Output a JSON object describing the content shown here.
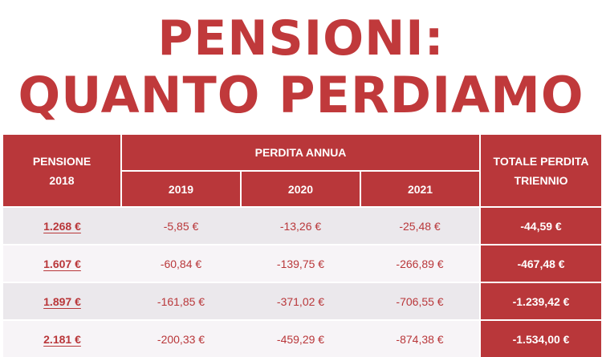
{
  "title": {
    "line1": "PENSIONI:",
    "line2": "QUANTO PERDIAMO"
  },
  "table": {
    "col_pension_line1": "PENSIONE",
    "col_pension_line2": "2018",
    "group_header": "PERDITA ANNUA",
    "years": [
      "2019",
      "2020",
      "2021"
    ],
    "col_total_line1": "TOTALE PERDITA",
    "col_total_line2": "TRIENNIO",
    "rows": [
      {
        "pension": "1.268 €",
        "y2019": "-5,85 €",
        "y2020": "-13,26 €",
        "y2021": "-25,48 €",
        "total": "-44,59 €"
      },
      {
        "pension": "1.607 €",
        "y2019": "-60,84 €",
        "y2020": "-139,75 €",
        "y2021": "-266,89 €",
        "total": "-467,48 €"
      },
      {
        "pension": "1.897 €",
        "y2019": "-161,85 €",
        "y2020": "-371,02 €",
        "y2021": "-706,55 €",
        "total": "-1.239,42 €"
      },
      {
        "pension": "2.181 €",
        "y2019": "-200,33 €",
        "y2020": "-459,29 €",
        "y2021": "-874,38 €",
        "total": "-1.534,00 €"
      }
    ]
  },
  "colors": {
    "accent": "#b9373a",
    "row_light": "#f7f4f7",
    "row_dark": "#ebe8ec"
  }
}
